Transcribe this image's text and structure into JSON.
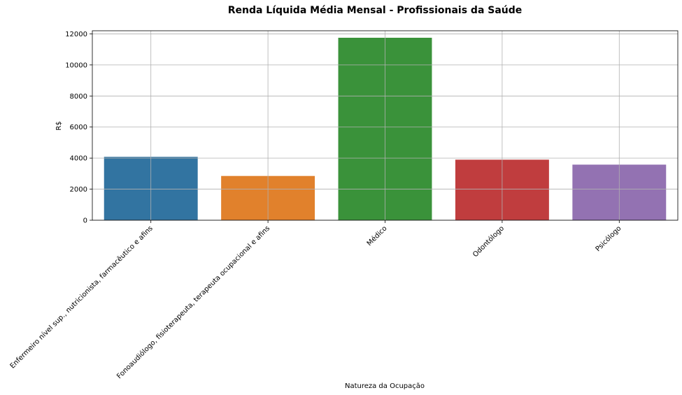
{
  "chart_data": {
    "type": "bar",
    "title": "Renda Líquida Média Mensal - Profissionais da Saúde",
    "xlabel": "Natureza da Ocupação",
    "ylabel": "R$",
    "categories": [
      "Enfermeiro nível sup., nutricionista, farmacêutico e afins",
      "Fonoaudiólogo, fisioterapeuta, terapeuta ocupacional e afins",
      "Médico",
      "Odontólogo",
      "Psicólogo"
    ],
    "values": [
      4080,
      2850,
      11750,
      3900,
      3580
    ],
    "colors": [
      "#3274a1",
      "#e1812c",
      "#3a923a",
      "#c03d3e",
      "#9372b2"
    ],
    "ylim": [
      0,
      12200
    ],
    "yticks": [
      0,
      2000,
      4000,
      6000,
      8000,
      10000,
      12000
    ],
    "grid": true,
    "legend": "none"
  }
}
